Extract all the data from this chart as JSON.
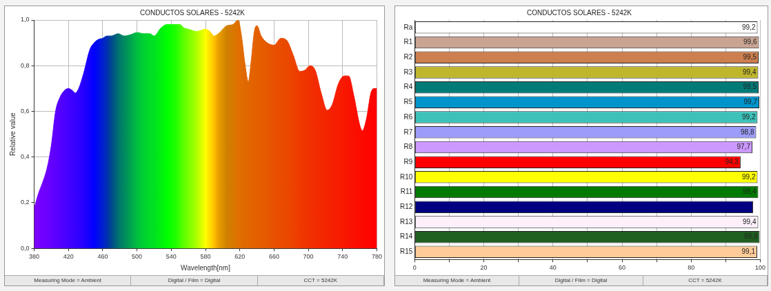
{
  "chart_data": [
    {
      "type": "area",
      "title": "CONDUCTOS SOLARES - 5242K",
      "xlabel": "Wavelength[nm]",
      "ylabel": "Relative value",
      "x": [
        380,
        385,
        390,
        395,
        400,
        405,
        410,
        415,
        420,
        425,
        428,
        432,
        438,
        445,
        450,
        455,
        460,
        465,
        470,
        478,
        485,
        492,
        500,
        508,
        515,
        520,
        528,
        535,
        545,
        550,
        555,
        560,
        570,
        580,
        585,
        590,
        595,
        605,
        612,
        618,
        622,
        626,
        630,
        633,
        637,
        640,
        645,
        652,
        660,
        668,
        675,
        682,
        690,
        696,
        702,
        708,
        715,
        722,
        728,
        735,
        742,
        747,
        753,
        760,
        763,
        768,
        773,
        777,
        780
      ],
      "values": [
        0.175,
        0.24,
        0.29,
        0.35,
        0.45,
        0.6,
        0.66,
        0.69,
        0.7,
        0.69,
        0.68,
        0.7,
        0.77,
        0.87,
        0.9,
        0.915,
        0.92,
        0.93,
        0.93,
        0.94,
        0.93,
        0.935,
        0.945,
        0.94,
        0.94,
        0.93,
        0.965,
        0.98,
        0.98,
        0.98,
        0.965,
        0.96,
        0.95,
        0.96,
        0.95,
        0.93,
        0.94,
        0.975,
        0.98,
        1.0,
        0.93,
        0.81,
        0.73,
        0.81,
        0.95,
        0.975,
        0.93,
        0.9,
        0.89,
        0.92,
        0.91,
        0.85,
        0.775,
        0.78,
        0.8,
        0.78,
        0.68,
        0.605,
        0.63,
        0.72,
        0.755,
        0.755,
        0.67,
        0.54,
        0.515,
        0.57,
        0.68,
        0.7,
        0.7
      ],
      "colors": [
        "#8000ff",
        "#7800ff",
        "#7000ff",
        "#6c00ff",
        "#6400ff",
        "#5c00ff",
        "#5400ff",
        "#4c00ff",
        "#4400ff",
        "#3c00ff",
        "#3800ff",
        "#3000ff",
        "#2400ff",
        "#1000ff",
        "#0000ff",
        "#0010e8",
        "#0020d0",
        "#0030b0",
        "#004890",
        "#007070",
        "#008a60",
        "#00a050",
        "#00c040",
        "#00d030",
        "#00dc28",
        "#00e020",
        "#00f010",
        "#00ff00",
        "#20ff00",
        "#40ff00",
        "#60ff00",
        "#78ff00",
        "#b0ff00",
        "#ffff00",
        "#ffe000",
        "#ffc000",
        "#e8a000",
        "#d08000",
        "#d87800",
        "#e07000",
        "#e06c00",
        "#e06800",
        "#e06800",
        "#e46400",
        "#e46200",
        "#e46000",
        "#e65c00",
        "#e65800",
        "#e85000",
        "#ea4c00",
        "#ea4800",
        "#ec4400",
        "#f03800",
        "#f03400",
        "#f03000",
        "#f22c00",
        "#f42800",
        "#f42400",
        "#f62000",
        "#f61c00",
        "#f81800",
        "#f91400",
        "#fa1000",
        "#fc0c00",
        "#fc0a00",
        "#fd0600",
        "#fe0400",
        "#ff0200",
        "#ff0000"
      ],
      "xlim": [
        380,
        780
      ],
      "xticks": [
        380,
        420,
        460,
        500,
        540,
        580,
        620,
        660,
        700,
        740,
        780
      ],
      "ylim": [
        0,
        1
      ],
      "yticks": [
        {
          "value": 0,
          "label": "0,0"
        },
        {
          "value": 0.2,
          "label": "0,2"
        },
        {
          "value": 0.4,
          "label": "0,4"
        },
        {
          "value": 0.6,
          "label": "0,6"
        },
        {
          "value": 0.8,
          "label": "0,8"
        },
        {
          "value": 1,
          "label": "1,0"
        }
      ],
      "grid": true,
      "annotations": [
        "Measuring Mode = Ambient",
        "Digital / Film = Digital",
        "CCT = 5242K"
      ]
    },
    {
      "type": "bar",
      "orientation": "horizontal",
      "title": "CONDUCTOS SOLARES - 5242K",
      "categories": [
        "Ra",
        "R1",
        "R2",
        "R3",
        "R4",
        "R5",
        "R6",
        "R7",
        "R8",
        "R9",
        "R10",
        "R11",
        "R12",
        "R13",
        "R14",
        "R15"
      ],
      "values": [
        99.2,
        99.6,
        99.5,
        99.4,
        99.5,
        99.7,
        99.2,
        98.8,
        97.7,
        94.3,
        99.2,
        99.4,
        97.9,
        99.4,
        99.8,
        99.1
      ],
      "value_labels": [
        "99,2",
        "99,6",
        "99,5",
        "99,4",
        "99,5",
        "99,7",
        "99,2",
        "98,8",
        "97,7",
        "94,3",
        "99,2",
        "99,4",
        null,
        "99,4",
        "99,8",
        "99,1"
      ],
      "colors": [
        "#ffffff",
        "#c9a493",
        "#cd7f50",
        "#c0b62c",
        "#007b78",
        "#0094cc",
        "#3cc2b8",
        "#9d9cfa",
        "#cc99ff",
        "#ff0000",
        "#ffff00",
        "#007a00",
        "#000080",
        "#fdf0fb",
        "#1f5f1f",
        "#ffcc99"
      ],
      "xlim": [
        0,
        100
      ],
      "xticks": [
        0,
        {
          "value": 10,
          "label": null
        },
        20,
        {
          "value": 30,
          "label": null
        },
        40,
        {
          "value": 50,
          "label": null
        },
        60,
        {
          "value": 70,
          "label": null
        },
        80,
        {
          "value": 90,
          "label": null
        },
        100
      ],
      "grid": "x",
      "annotations": [
        "Measuring Mode = Ambient",
        "Digital / Film = Digital",
        "CCT = 5242K"
      ]
    }
  ]
}
